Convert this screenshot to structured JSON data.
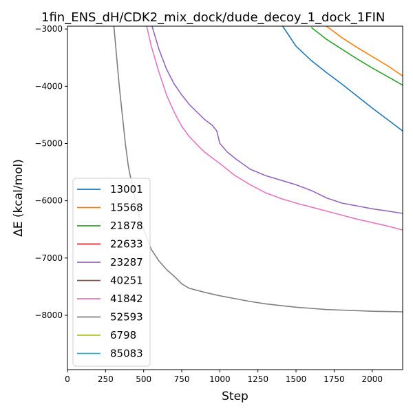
{
  "chart_data": {
    "type": "line",
    "title": "1fin_ENS_dH/CDK2_mix_dock/dude_decoy_1_dock_1FIN",
    "xlabel": "Step",
    "ylabel": "ΔE (kcal/mol)",
    "xlim": [
      0,
      2200
    ],
    "ylim": [
      -8950,
      -2950
    ],
    "xticks": [
      0,
      250,
      500,
      750,
      1000,
      1250,
      1500,
      1750,
      2000
    ],
    "xtick_labels": [
      "0",
      "250",
      "500",
      "750",
      "1000",
      "1250",
      "1500",
      "1750",
      "2000"
    ],
    "yticks": [
      -8000,
      -7000,
      -6000,
      -5000,
      -4000,
      -3000
    ],
    "ytick_labels": [
      "−8000",
      "−7000",
      "−6000",
      "−5000",
      "−4000",
      "−3000"
    ],
    "grid": false,
    "legend_position": "lower-left",
    "series": [
      {
        "name": "13001",
        "color": "#1f77b4",
        "points": [
          [
            1400,
            -2900
          ],
          [
            1450,
            -3100
          ],
          [
            1500,
            -3300
          ],
          [
            1600,
            -3550
          ],
          [
            1700,
            -3760
          ],
          [
            1800,
            -3960
          ],
          [
            1900,
            -4170
          ],
          [
            2000,
            -4380
          ],
          [
            2100,
            -4580
          ],
          [
            2200,
            -4780
          ]
        ]
      },
      {
        "name": "15568",
        "color": "#ff7f0e",
        "points": [
          [
            1700,
            -2950
          ],
          [
            1800,
            -3150
          ],
          [
            1900,
            -3320
          ],
          [
            2000,
            -3480
          ],
          [
            2100,
            -3640
          ],
          [
            2200,
            -3820
          ]
        ]
      },
      {
        "name": "21878",
        "color": "#2ca02c",
        "points": [
          [
            1600,
            -2970
          ],
          [
            1700,
            -3180
          ],
          [
            1800,
            -3350
          ],
          [
            1900,
            -3520
          ],
          [
            2000,
            -3680
          ],
          [
            2100,
            -3830
          ],
          [
            2200,
            -3980
          ]
        ]
      },
      {
        "name": "22633",
        "color": "#d62728",
        "points": []
      },
      {
        "name": "23287",
        "color": "#9467bd",
        "points": [
          [
            555,
            -2950
          ],
          [
            600,
            -3350
          ],
          [
            650,
            -3700
          ],
          [
            700,
            -3960
          ],
          [
            750,
            -4150
          ],
          [
            800,
            -4320
          ],
          [
            850,
            -4450
          ],
          [
            900,
            -4580
          ],
          [
            950,
            -4680
          ],
          [
            980,
            -4780
          ],
          [
            1000,
            -5000
          ],
          [
            1050,
            -5150
          ],
          [
            1100,
            -5260
          ],
          [
            1200,
            -5450
          ],
          [
            1300,
            -5560
          ],
          [
            1400,
            -5640
          ],
          [
            1500,
            -5720
          ],
          [
            1600,
            -5820
          ],
          [
            1700,
            -5950
          ],
          [
            1800,
            -6040
          ],
          [
            1900,
            -6090
          ],
          [
            2000,
            -6140
          ],
          [
            2100,
            -6180
          ],
          [
            2200,
            -6220
          ]
        ]
      },
      {
        "name": "40251",
        "color": "#8c564b",
        "points": []
      },
      {
        "name": "41842",
        "color": "#e377c2",
        "points": [
          [
            520,
            -2950
          ],
          [
            550,
            -3300
          ],
          [
            600,
            -3750
          ],
          [
            650,
            -4150
          ],
          [
            700,
            -4450
          ],
          [
            750,
            -4700
          ],
          [
            800,
            -4880
          ],
          [
            850,
            -5020
          ],
          [
            900,
            -5150
          ],
          [
            1000,
            -5350
          ],
          [
            1100,
            -5560
          ],
          [
            1200,
            -5720
          ],
          [
            1300,
            -5860
          ],
          [
            1400,
            -5960
          ],
          [
            1500,
            -6040
          ],
          [
            1600,
            -6110
          ],
          [
            1700,
            -6180
          ],
          [
            1800,
            -6250
          ],
          [
            1900,
            -6320
          ],
          [
            2000,
            -6380
          ],
          [
            2100,
            -6440
          ],
          [
            2200,
            -6510
          ]
        ]
      },
      {
        "name": "52593",
        "color": "#7f7f7f",
        "points": [
          [
            305,
            -2950
          ],
          [
            320,
            -3400
          ],
          [
            340,
            -4000
          ],
          [
            360,
            -4500
          ],
          [
            380,
            -5000
          ],
          [
            400,
            -5400
          ],
          [
            430,
            -5800
          ],
          [
            460,
            -6150
          ],
          [
            500,
            -6500
          ],
          [
            550,
            -6850
          ],
          [
            600,
            -7050
          ],
          [
            650,
            -7200
          ],
          [
            700,
            -7320
          ],
          [
            750,
            -7450
          ],
          [
            800,
            -7530
          ],
          [
            900,
            -7600
          ],
          [
            1000,
            -7660
          ],
          [
            1100,
            -7710
          ],
          [
            1200,
            -7760
          ],
          [
            1300,
            -7800
          ],
          [
            1400,
            -7830
          ],
          [
            1500,
            -7860
          ],
          [
            1600,
            -7880
          ],
          [
            1700,
            -7900
          ],
          [
            1800,
            -7910
          ],
          [
            1900,
            -7920
          ],
          [
            2000,
            -7930
          ],
          [
            2100,
            -7935
          ],
          [
            2200,
            -7940
          ]
        ]
      },
      {
        "name": "6798",
        "color": "#bcbd22",
        "points": []
      },
      {
        "name": "85083",
        "color": "#17becf",
        "points": []
      }
    ]
  }
}
